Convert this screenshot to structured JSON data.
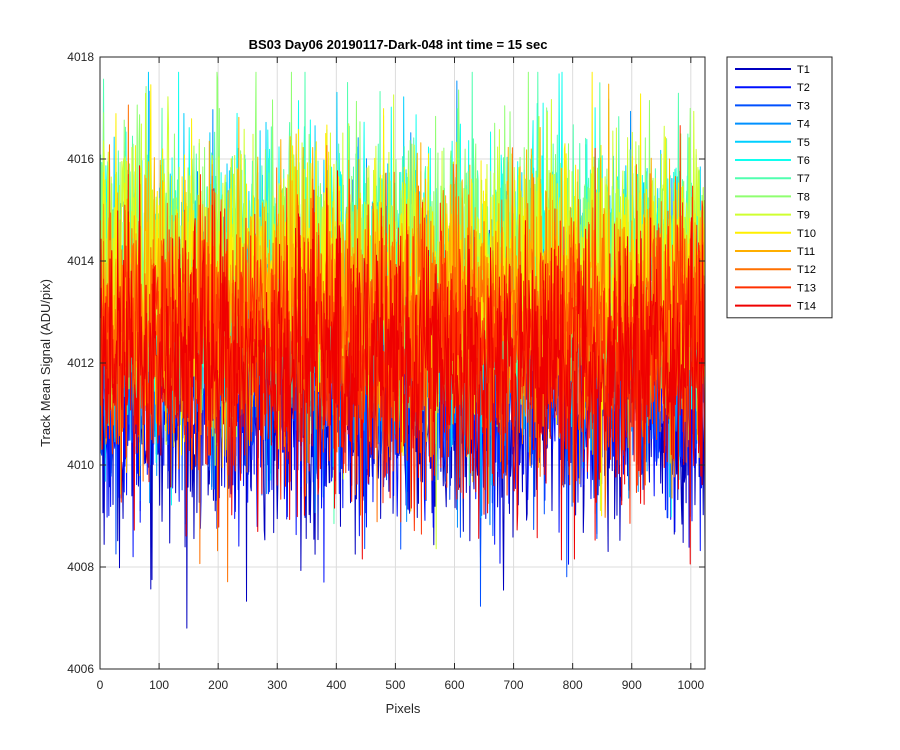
{
  "chart_data": {
    "type": "line",
    "title": "BS03 Day06 20190117-Dark-048 int time = 15 sec",
    "xlabel": "Pixels",
    "ylabel": "Track Mean Signal (ADU/pix)",
    "xlim": [
      0,
      1024
    ],
    "ylim": [
      4006,
      4018
    ],
    "xticks": [
      0,
      100,
      200,
      300,
      400,
      500,
      600,
      700,
      800,
      900,
      1000
    ],
    "yticks": [
      4006,
      4008,
      4010,
      4012,
      4014,
      4016,
      4018
    ],
    "grid": true,
    "legend_position": "outside-top-right",
    "x_points": 1024,
    "series": [
      {
        "name": "T1",
        "color": "#0000BF",
        "mean": 4011.0,
        "spread": 1.2
      },
      {
        "name": "T2",
        "color": "#0010FF",
        "mean": 4011.4,
        "spread": 1.2
      },
      {
        "name": "T3",
        "color": "#0050FF",
        "mean": 4012.0,
        "spread": 1.2
      },
      {
        "name": "T4",
        "color": "#0090FF",
        "mean": 4012.6,
        "spread": 1.3
      },
      {
        "name": "T5",
        "color": "#00CFFF",
        "mean": 4013.3,
        "spread": 1.3
      },
      {
        "name": "T6",
        "color": "#10FFEF",
        "mean": 4013.8,
        "spread": 1.3
      },
      {
        "name": "T7",
        "color": "#50FFAF",
        "mean": 4013.9,
        "spread": 1.3
      },
      {
        "name": "T8",
        "color": "#8FFF70",
        "mean": 4013.9,
        "spread": 1.3
      },
      {
        "name": "T9",
        "color": "#CFFF30",
        "mean": 4013.7,
        "spread": 1.3
      },
      {
        "name": "T10",
        "color": "#FFEF00",
        "mean": 4013.4,
        "spread": 1.3
      },
      {
        "name": "T11",
        "color": "#FFAF00",
        "mean": 4013.1,
        "spread": 1.3
      },
      {
        "name": "T12",
        "color": "#FF7000",
        "mean": 4012.7,
        "spread": 1.3
      },
      {
        "name": "T13",
        "color": "#FF3000",
        "mean": 4012.3,
        "spread": 1.3
      },
      {
        "name": "T14",
        "color": "#EF0000",
        "mean": 4011.9,
        "spread": 1.3
      }
    ]
  }
}
